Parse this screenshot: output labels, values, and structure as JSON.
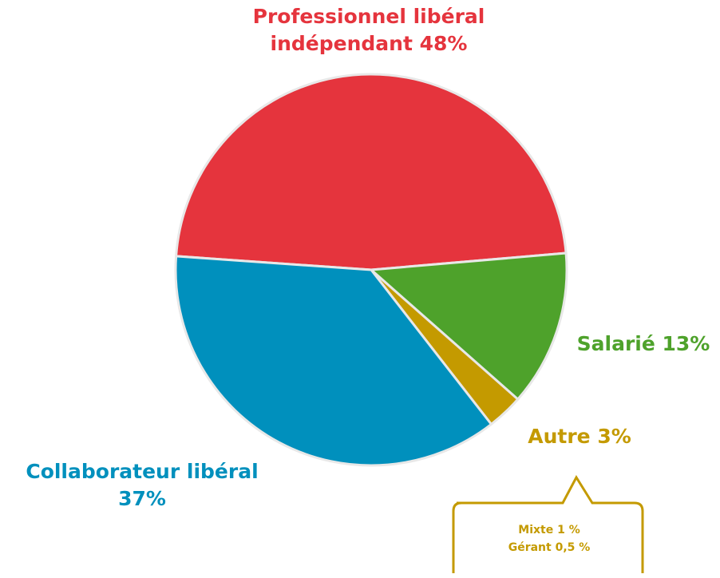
{
  "chart_data": {
    "type": "pie",
    "categories": [
      "Professionnel libéral indépendant",
      "Salarié",
      "Autre",
      "Collaborateur libéral"
    ],
    "values": [
      48,
      13,
      3,
      37
    ],
    "value_labels": [
      "48%",
      "13%",
      "3%",
      "37%"
    ],
    "colors": [
      "#e5343d",
      "#4ea22b",
      "#c49a00",
      "#0090bd"
    ],
    "annotations": [
      "Mixte 1 %",
      "Gérant 0,5 %"
    ]
  }
}
